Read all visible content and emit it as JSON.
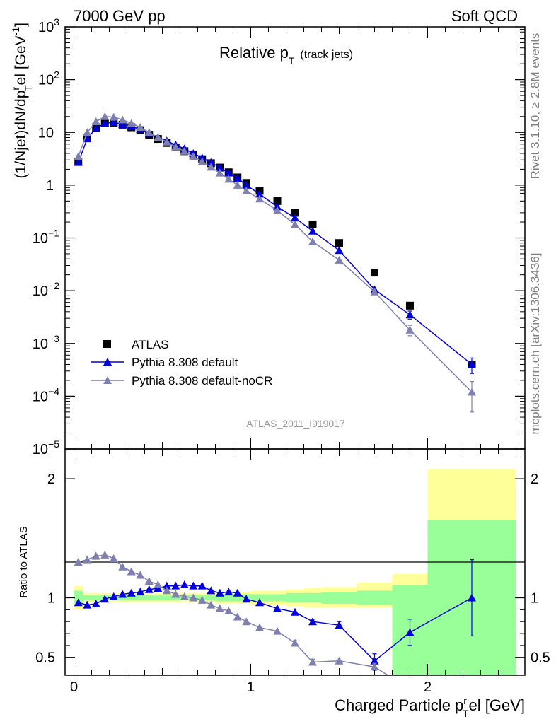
{
  "header": {
    "left": "7000 GeV pp",
    "right": "Soft QCD"
  },
  "side": {
    "rivet": "Rivet 3.1.10, ≥ 2.8M events",
    "mcplots": "mcplots.cern.ch [arXiv:1306.3436]"
  },
  "chart_data": [
    {
      "type": "scatter",
      "title_main": "Relative p",
      "title_sub": "T",
      "title_extra": "(track jets)",
      "ylabel_main": "(1/Njet)dN/dp",
      "ylabel_sup": "r",
      "ylabel_sub": "T",
      "ylabel_tail": "el [GeV",
      "ylabel_unit_sup": "-1",
      "yscale": "log",
      "ylim": [
        1e-05,
        1000
      ],
      "xlim": [
        -0.05,
        2.55
      ],
      "y_ticks": [
        {
          "v": 1000,
          "base": "10",
          "exp": "3"
        },
        {
          "v": 100,
          "base": "10",
          "exp": "2"
        },
        {
          "v": 10,
          "base": "10",
          "exp": ""
        },
        {
          "v": 1,
          "base": "1",
          "exp": ""
        },
        {
          "v": 0.1,
          "base": "10",
          "exp": "−1"
        },
        {
          "v": 0.01,
          "base": "10",
          "exp": "−2"
        },
        {
          "v": 0.001,
          "base": "10",
          "exp": "−3"
        },
        {
          "v": 0.0001,
          "base": "10",
          "exp": "−4"
        },
        {
          "v": 1e-05,
          "base": "10",
          "exp": "−5"
        }
      ],
      "watermark": "ATLAS_2011_I919017",
      "legend_position": "lower-left",
      "series": [
        {
          "name": "ATLAS",
          "color": "#000000",
          "marker": "square",
          "points": [
            [
              0.025,
              2.8
            ],
            [
              0.075,
              8.0
            ],
            [
              0.125,
              12.5
            ],
            [
              0.175,
              15.0
            ],
            [
              0.225,
              15.3
            ],
            [
              0.275,
              14.0
            ],
            [
              0.325,
              12.5
            ],
            [
              0.375,
              11.0
            ],
            [
              0.425,
              9.0
            ],
            [
              0.475,
              7.5
            ],
            [
              0.525,
              6.3
            ],
            [
              0.575,
              5.2
            ],
            [
              0.625,
              4.4
            ],
            [
              0.675,
              3.7
            ],
            [
              0.725,
              3.1
            ],
            [
              0.775,
              2.6
            ],
            [
              0.825,
              2.15
            ],
            [
              0.875,
              1.75
            ],
            [
              0.925,
              1.4
            ],
            [
              0.975,
              1.1
            ],
            [
              1.05,
              0.78
            ],
            [
              1.15,
              0.5
            ],
            [
              1.25,
              0.3
            ],
            [
              1.35,
              0.18
            ],
            [
              1.5,
              0.08
            ],
            [
              1.7,
              0.022
            ],
            [
              1.9,
              0.0052
            ],
            [
              2.25,
              0.0004
            ]
          ]
        },
        {
          "name": "Pythia 8.308 default",
          "color": "#0000dd",
          "marker": "triangle",
          "points": [
            [
              0.025,
              2.7
            ],
            [
              0.075,
              7.6
            ],
            [
              0.125,
              12.0
            ],
            [
              0.175,
              14.8
            ],
            [
              0.225,
              15.5
            ],
            [
              0.275,
              14.2
            ],
            [
              0.325,
              12.9
            ],
            [
              0.375,
              11.5
            ],
            [
              0.425,
              9.6
            ],
            [
              0.475,
              8.1
            ],
            [
              0.525,
              6.9
            ],
            [
              0.575,
              5.8
            ],
            [
              0.625,
              4.9
            ],
            [
              0.675,
              4.0
            ],
            [
              0.725,
              3.3
            ],
            [
              0.775,
              2.7
            ],
            [
              0.825,
              2.15
            ],
            [
              0.875,
              1.7
            ],
            [
              0.925,
              1.35
            ],
            [
              0.975,
              1.0
            ],
            [
              1.05,
              0.68
            ],
            [
              1.15,
              0.39
            ],
            [
              1.25,
              0.24
            ],
            [
              1.35,
              0.135
            ],
            [
              1.5,
              0.058
            ],
            [
              1.7,
              0.0105
            ],
            [
              1.9,
              0.0035
            ],
            [
              2.25,
              0.0004
            ]
          ],
          "errors": {
            "1.9": 0.0006,
            "2.25": 0.00013
          }
        },
        {
          "name": "Pythia 8.308 default-noCR",
          "color": "#7f7fb0",
          "marker": "triangle",
          "points": [
            [
              0.025,
              3.5
            ],
            [
              0.075,
              10.0
            ],
            [
              0.125,
              16.0
            ],
            [
              0.175,
              20.0
            ],
            [
              0.225,
              19.5
            ],
            [
              0.275,
              17.3
            ],
            [
              0.325,
              14.8
            ],
            [
              0.375,
              12.5
            ],
            [
              0.425,
              10.0
            ],
            [
              0.475,
              8.1
            ],
            [
              0.525,
              6.6
            ],
            [
              0.575,
              5.3
            ],
            [
              0.625,
              4.4
            ],
            [
              0.675,
              3.5
            ],
            [
              0.725,
              2.8
            ],
            [
              0.775,
              2.2
            ],
            [
              0.825,
              1.7
            ],
            [
              0.875,
              1.3
            ],
            [
              0.925,
              1.0
            ],
            [
              0.975,
              0.78
            ],
            [
              1.05,
              0.55
            ],
            [
              1.15,
              0.33
            ],
            [
              1.25,
              0.18
            ],
            [
              1.35,
              0.085
            ],
            [
              1.5,
              0.038
            ],
            [
              1.7,
              0.0095
            ],
            [
              1.9,
              0.0018
            ],
            [
              2.25,
              0.00012
            ]
          ],
          "errors": {
            "1.9": 0.0004,
            "2.25": 7e-05
          }
        }
      ]
    },
    {
      "type": "scatter",
      "ylabel": "Ratio to ATLAS",
      "xlabel_main": "Charged Particle p",
      "xlabel_sup": "r",
      "xlabel_sub": "T",
      "xlabel_tail": "el [GeV]",
      "ylim": [
        0.35,
        2.25
      ],
      "xlim": [
        -0.05,
        2.55
      ],
      "y_ticks": [
        {
          "v": 0.5,
          "label": "0.5"
        },
        {
          "v": 1,
          "label": "1"
        },
        {
          "v": 2,
          "label": "2"
        }
      ],
      "x_ticks": [
        {
          "v": 0,
          "label": "0"
        },
        {
          "v": 1,
          "label": "1"
        },
        {
          "v": 2,
          "label": "2"
        }
      ],
      "bands": {
        "colors": {
          "outer": "#ffff99",
          "inner": "#99ff99"
        },
        "bins": [
          [
            0.0,
            0.05,
            1.06,
            0.94,
            1.1,
            0.9
          ],
          [
            0.05,
            0.1,
            1.02,
            0.98,
            1.04,
            0.96
          ],
          [
            0.1,
            0.8,
            1.02,
            0.98,
            1.04,
            0.96
          ],
          [
            0.8,
            0.9,
            1.03,
            0.97,
            1.05,
            0.95
          ],
          [
            0.9,
            1.0,
            1.03,
            0.97,
            1.05,
            0.95
          ],
          [
            1.0,
            1.1,
            1.03,
            0.97,
            1.06,
            0.94
          ],
          [
            1.1,
            1.2,
            1.03,
            0.97,
            1.06,
            0.94
          ],
          [
            1.2,
            1.3,
            1.04,
            0.96,
            1.07,
            0.93
          ],
          [
            1.3,
            1.4,
            1.04,
            0.96,
            1.08,
            0.92
          ],
          [
            1.4,
            1.6,
            1.05,
            0.95,
            1.09,
            0.92
          ],
          [
            1.6,
            1.8,
            1.06,
            0.94,
            1.13,
            0.92
          ],
          [
            1.8,
            2.0,
            1.11,
            0.35,
            1.2,
            0.88
          ],
          [
            2.0,
            2.5,
            1.65,
            0.35,
            2.08,
            0.35
          ]
        ]
      },
      "series": [
        {
          "name": "Pythia 8.308 default",
          "color": "#0000dd",
          "points": [
            [
              0.025,
              0.96
            ],
            [
              0.075,
              0.94
            ],
            [
              0.125,
              0.95
            ],
            [
              0.175,
              0.99
            ],
            [
              0.225,
              1.01
            ],
            [
              0.275,
              1.03
            ],
            [
              0.325,
              1.04
            ],
            [
              0.375,
              1.05
            ],
            [
              0.425,
              1.07
            ],
            [
              0.475,
              1.08
            ],
            [
              0.525,
              1.1
            ],
            [
              0.575,
              1.1
            ],
            [
              0.625,
              1.11
            ],
            [
              0.675,
              1.1
            ],
            [
              0.725,
              1.1
            ],
            [
              0.775,
              1.06
            ],
            [
              0.825,
              1.04
            ],
            [
              0.875,
              1.05
            ],
            [
              0.925,
              1.04
            ],
            [
              0.975,
              0.99
            ],
            [
              1.05,
              0.96
            ],
            [
              1.15,
              0.91
            ],
            [
              1.25,
              0.88
            ],
            [
              1.35,
              0.8
            ],
            [
              1.5,
              0.77
            ],
            [
              1.7,
              0.47
            ],
            [
              1.9,
              0.71
            ],
            [
              2.25,
              1.0
            ]
          ],
          "errors": {
            "1.35": 0.02,
            "1.5": 0.03,
            "1.7": 0.06,
            "1.9": 0.11,
            "2.25": 0.32
          }
        },
        {
          "name": "Pythia 8.308 default-noCR",
          "color": "#7f7fb0",
          "points": [
            [
              0.025,
              1.3
            ],
            [
              0.075,
              1.32
            ],
            [
              0.125,
              1.35
            ],
            [
              0.175,
              1.36
            ],
            [
              0.225,
              1.33
            ],
            [
              0.275,
              1.26
            ],
            [
              0.325,
              1.22
            ],
            [
              0.375,
              1.19
            ],
            [
              0.425,
              1.14
            ],
            [
              0.475,
              1.11
            ],
            [
              0.525,
              1.06
            ],
            [
              0.575,
              1.03
            ],
            [
              0.625,
              1.01
            ],
            [
              0.675,
              1.0
            ],
            [
              0.725,
              0.98
            ],
            [
              0.775,
              0.94
            ],
            [
              0.825,
              0.91
            ],
            [
              0.875,
              0.89
            ],
            [
              0.925,
              0.84
            ],
            [
              0.975,
              0.8
            ],
            [
              1.05,
              0.75
            ],
            [
              1.15,
              0.72
            ],
            [
              1.25,
              0.62
            ],
            [
              1.35,
              0.46
            ],
            [
              1.5,
              0.47
            ],
            [
              1.7,
              0.42
            ],
            [
              1.775,
              0.35
            ]
          ],
          "errors": {
            "1.25": 0.02,
            "1.35": 0.025,
            "1.5": 0.025,
            "1.7": 0.03
          }
        }
      ]
    }
  ]
}
